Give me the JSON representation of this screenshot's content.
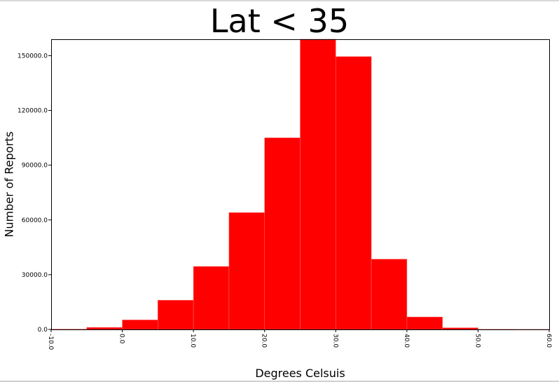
{
  "chart_data": {
    "type": "bar",
    "title": "Lat < 35",
    "xlabel": "Degrees Celsuis",
    "ylabel": "Number of Reports",
    "xlim": [
      -10,
      60
    ],
    "ylim": [
      0,
      159000
    ],
    "x_ticks": [
      -10,
      0,
      10,
      20,
      30,
      40,
      50,
      60
    ],
    "x_tick_labels": [
      "-10.0",
      "0.0",
      "10.0",
      "20.0",
      "30.0",
      "40.0",
      "50.0",
      "60.0"
    ],
    "y_ticks": [
      0,
      30000,
      60000,
      90000,
      120000,
      150000
    ],
    "y_tick_labels": [
      "0.0",
      "30000.0",
      "60000.0",
      "90000.0",
      "120000.0",
      "150000.0"
    ],
    "bar_color": "#ff0000",
    "bar_edge_color": "#ff6060",
    "bins": [
      {
        "start": -10,
        "end": -5,
        "value": 150
      },
      {
        "start": -5,
        "end": 0,
        "value": 1100
      },
      {
        "start": 0,
        "end": 5,
        "value": 5200
      },
      {
        "start": 5,
        "end": 10,
        "value": 16000
      },
      {
        "start": 10,
        "end": 15,
        "value": 34500
      },
      {
        "start": 15,
        "end": 20,
        "value": 64000
      },
      {
        "start": 20,
        "end": 25,
        "value": 105000
      },
      {
        "start": 25,
        "end": 30,
        "value": 159000
      },
      {
        "start": 30,
        "end": 35,
        "value": 149500
      },
      {
        "start": 35,
        "end": 40,
        "value": 38500
      },
      {
        "start": 40,
        "end": 45,
        "value": 6800
      },
      {
        "start": 45,
        "end": 50,
        "value": 900
      },
      {
        "start": 50,
        "end": 55,
        "value": 80
      },
      {
        "start": 55,
        "end": 60,
        "value": 30
      }
    ],
    "grid": false,
    "legend": "none"
  }
}
